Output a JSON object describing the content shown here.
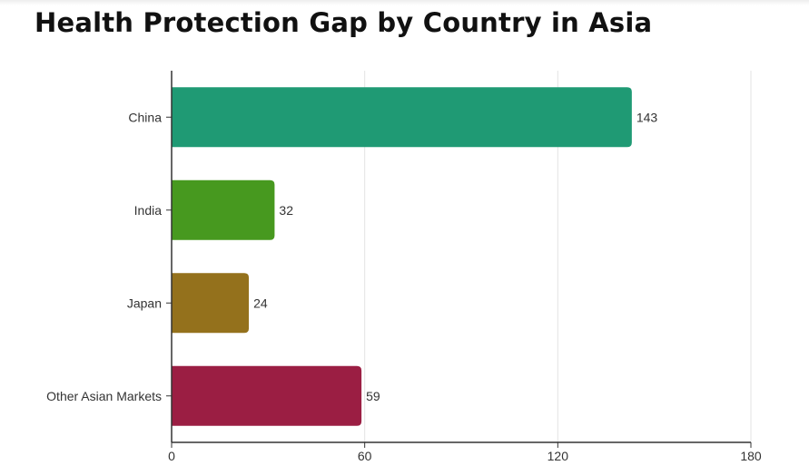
{
  "chart_data": {
    "type": "bar",
    "orientation": "horizontal",
    "title": "Health Protection Gap by Country in Asia",
    "categories": [
      "China",
      "India",
      "Japan",
      "Other Asian Markets"
    ],
    "values": [
      143,
      32,
      24,
      59
    ],
    "colors": [
      "#1f9a74",
      "#47991f",
      "#94711c",
      "#9b1e43"
    ],
    "xlim": [
      0,
      180
    ],
    "xticks": [
      0,
      60,
      120,
      180
    ],
    "grid": true,
    "data_labels": true
  }
}
